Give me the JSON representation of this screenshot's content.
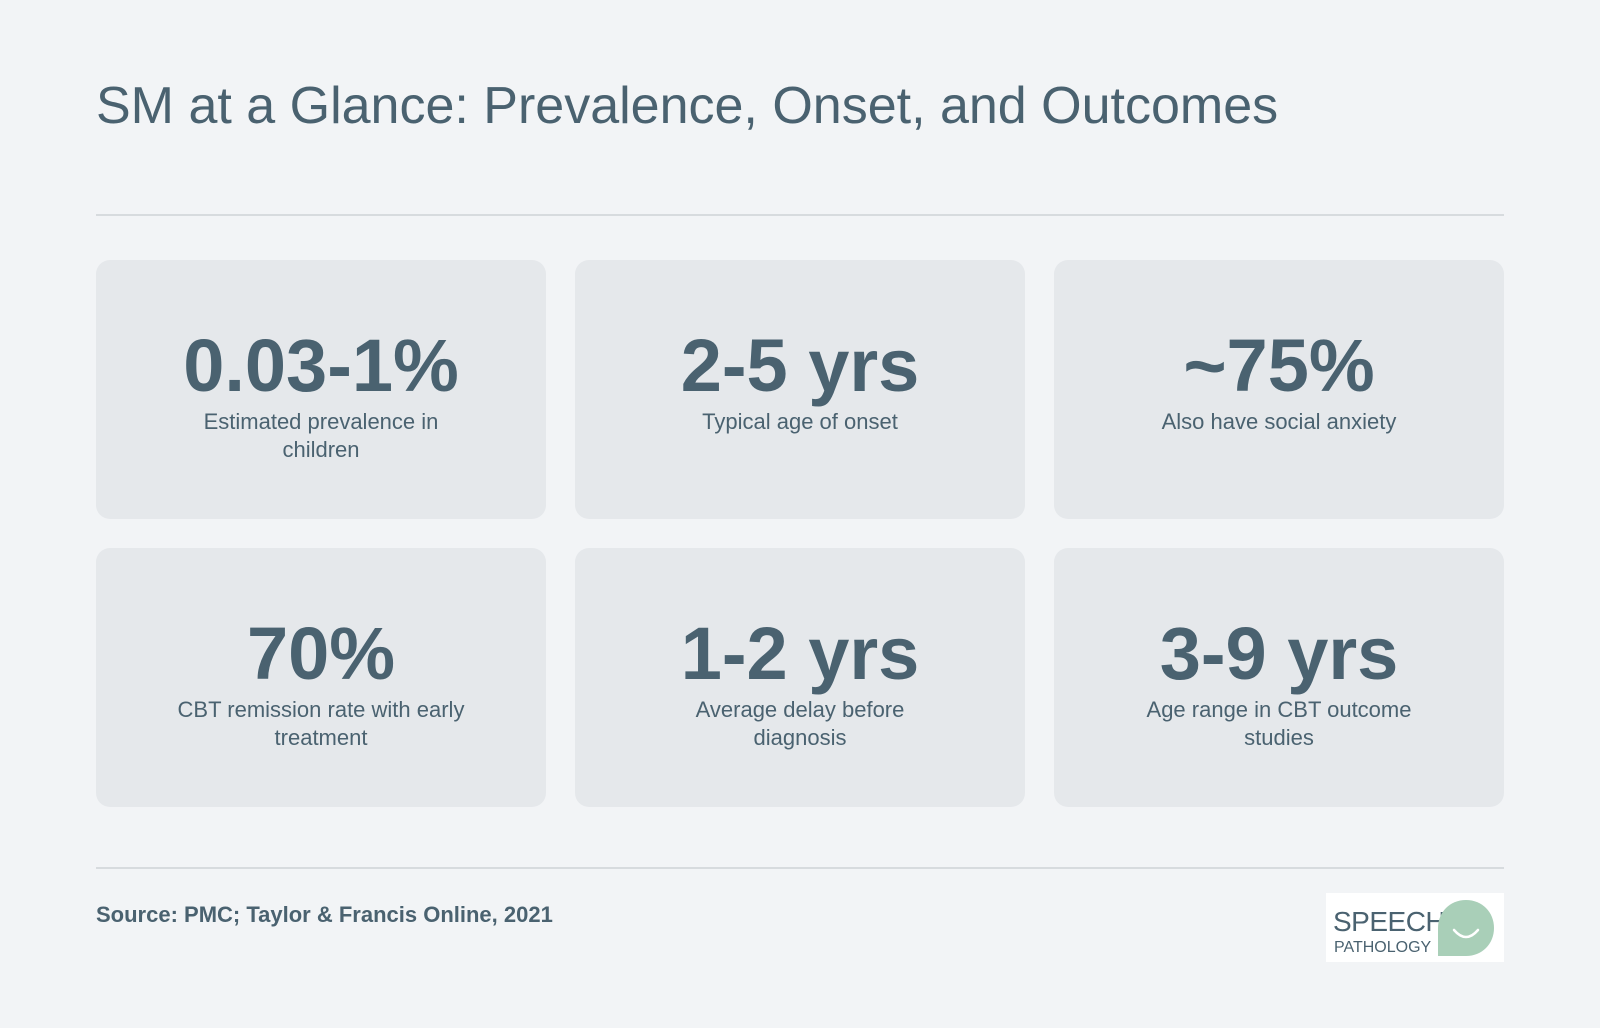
{
  "title": "SM at a Glance: Prevalence, Onset, and Outcomes",
  "stats": [
    {
      "value": "0.03-1%",
      "label": "Estimated prevalence in children"
    },
    {
      "value": "2-5 yrs",
      "label": "Typical age of onset"
    },
    {
      "value": "~75%",
      "label": "Also have social anxiety"
    },
    {
      "value": "70%",
      "label": "CBT remission rate with early treatment"
    },
    {
      "value": "1-2 yrs",
      "label": "Average delay before diagnosis"
    },
    {
      "value": "3-9 yrs",
      "label": "Age range in CBT outcome studies"
    }
  ],
  "source": "Source: PMC; Taylor & Francis Online, 2021",
  "logo": {
    "line1": "SPEECH",
    "line2": "PATHOLOGY",
    "icon": "speech-bubble-smile-icon",
    "bubble_color": "#a9cfb8"
  },
  "colors": {
    "background": "#f2f4f6",
    "card": "#e5e8eb",
    "text": "#4a6270",
    "rule": "#d7dbde"
  }
}
